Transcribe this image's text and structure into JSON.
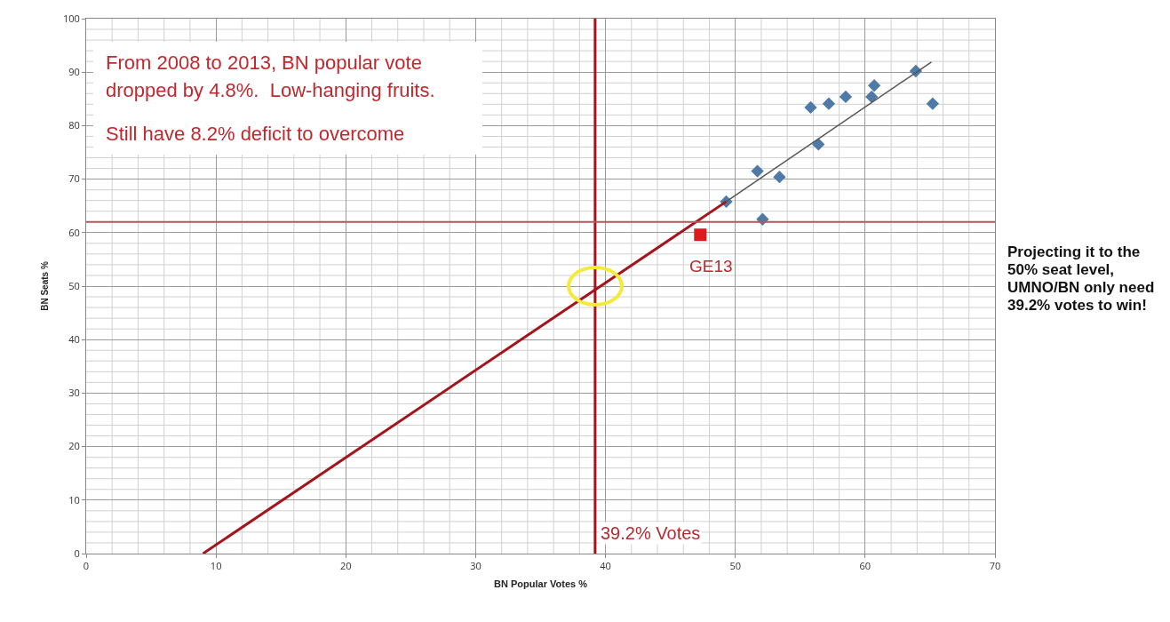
{
  "chart_data": {
    "type": "scatter",
    "xlabel": "BN Popular Votes %",
    "ylabel": "BN Seats %",
    "xlim": [
      0,
      70
    ],
    "xticks": [
      0,
      10,
      20,
      30,
      40,
      50,
      60,
      70
    ],
    "ylim": [
      0,
      100
    ],
    "yticks": [
      0,
      10,
      20,
      30,
      40,
      50,
      60,
      70,
      80,
      90,
      100
    ],
    "grid": true,
    "series": [
      {
        "type": "scatter",
        "color": "#4f7aa8",
        "marker": "diamond",
        "x": [
          49.3,
          51.7,
          52.1,
          53.4,
          55.8,
          56.4,
          57.2,
          58.5,
          60.5,
          60.7,
          63.9,
          65.2
        ],
        "values": [
          65.8,
          71.5,
          62.5,
          70.4,
          83.4,
          76.5,
          84.1,
          85.4,
          85.4,
          87.5,
          90.2,
          84.1
        ]
      },
      {
        "type": "scatter",
        "color": "#e0191e",
        "marker": "square",
        "x": [
          47.3
        ],
        "values": [
          59.6
        ]
      },
      {
        "type": "line",
        "color": "#555555",
        "marker": "none",
        "line_style": "solid",
        "x": [
          49.3,
          65.1
        ],
        "values": [
          65.8,
          91.9
        ]
      },
      {
        "type": "line",
        "color": "#a3141c",
        "marker": "none",
        "line_style": "solid",
        "x": [
          9,
          49.3
        ],
        "values": [
          0,
          65.8
        ]
      }
    ],
    "ref_lines": [
      {
        "axis": "x",
        "value": 39.2,
        "color": "#a3141c"
      },
      {
        "axis": "y",
        "value": 62,
        "color": "#b5585c"
      }
    ],
    "annotations": [
      "From 2008 to 2013, BN popular vote dropped by 4.8%.  Low-hanging fruits.",
      "Still have 8.2% deficit to overcome",
      "Projecting it to the 50% seat level, UMNO/BN only need 39.2% votes to win!",
      {
        "text": "39.2% Votes",
        "x": 39.2,
        "y": 0
      },
      {
        "text": "GE13",
        "x": 47.3,
        "y": 59.6
      }
    ]
  }
}
